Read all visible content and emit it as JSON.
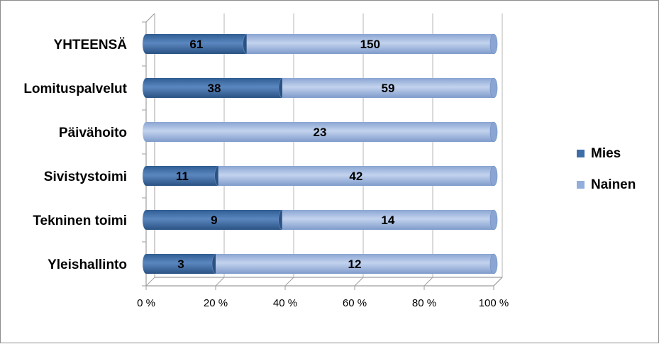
{
  "chart_data": {
    "type": "bar",
    "orientation": "horizontal",
    "stacking": "percent",
    "categories": [
      "YHTEENSÄ",
      "Lomituspalvelut",
      "Päivähoito",
      "Sivistystoimi",
      "Tekninen toimi",
      "Yleishallinto"
    ],
    "series": [
      {
        "name": "Mies",
        "color": "#3d6ea8",
        "values": [
          61,
          38,
          0,
          11,
          9,
          3
        ]
      },
      {
        "name": "Nainen",
        "color": "#94aedc",
        "values": [
          150,
          59,
          23,
          42,
          14,
          12
        ]
      }
    ],
    "xticks": [
      "0 %",
      "20 %",
      "40 %",
      "60 %",
      "80 %",
      "100 %"
    ],
    "xlim": [
      0,
      100
    ],
    "legend_position": "right",
    "grid": true
  }
}
